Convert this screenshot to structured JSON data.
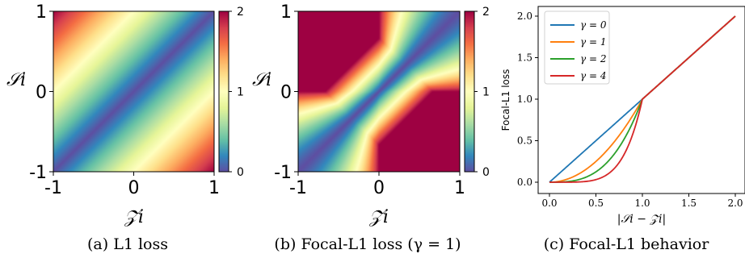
{
  "chart_data": [
    {
      "type": "heatmap",
      "caption": "(a) L1 loss",
      "xlabel": "𝒵i",
      "ylabel": "𝒮i",
      "xlim": [
        -1,
        1
      ],
      "ylim": [
        -1,
        1
      ],
      "xticks": [
        "-1",
        "0",
        "1"
      ],
      "yticks": [
        "-1",
        "0",
        "1"
      ],
      "colorbar": {
        "range": [
          0,
          2
        ],
        "ticks": [
          "0",
          "1",
          "2"
        ]
      },
      "function": "|S - Z|",
      "colormap": "Spectral_r"
    },
    {
      "type": "heatmap",
      "caption": "(b) Focal-L1 loss (γ = 1)",
      "xlabel": "𝒵i",
      "ylabel": "𝒮i",
      "xlim": [
        -1,
        1
      ],
      "ylim": [
        -1,
        1
      ],
      "xticks": [
        "-1",
        "0",
        "1"
      ],
      "yticks": [
        "-1",
        "0",
        "1"
      ],
      "colorbar": {
        "range": [
          0,
          2
        ],
        "ticks": [
          "0",
          "1",
          "2"
        ]
      },
      "function": "focal-L1 of (S - Z), gamma = 1",
      "colormap": "Spectral_r"
    },
    {
      "type": "line",
      "caption": "(c) Focal-L1 behavior",
      "xlabel": "|𝒮i − 𝒵i|",
      "ylabel": "Focal-L1 loss",
      "xlim": [
        0,
        2
      ],
      "ylim": [
        0,
        2
      ],
      "xticks": [
        "0.0",
        "0.5",
        "1.0",
        "1.5",
        "2.0"
      ],
      "yticks": [
        "0.0",
        "0.5",
        "1.0",
        "1.5",
        "2.0"
      ],
      "legend_position": "top-left",
      "x": [
        0.0,
        0.1,
        0.2,
        0.3,
        0.4,
        0.5,
        0.6,
        0.7,
        0.8,
        0.9,
        1.0,
        1.2,
        1.4,
        1.6,
        1.8,
        2.0
      ],
      "series": [
        {
          "name": "γ = 0",
          "color": "#1f77b4",
          "values": [
            0.0,
            0.1,
            0.2,
            0.3,
            0.4,
            0.5,
            0.6,
            0.7,
            0.8,
            0.9,
            1.0,
            1.2,
            1.4,
            1.6,
            1.8,
            2.0
          ]
        },
        {
          "name": "γ = 1",
          "color": "#ff7f0e",
          "values": [
            0.0,
            0.01,
            0.04,
            0.09,
            0.16,
            0.25,
            0.36,
            0.49,
            0.64,
            0.81,
            1.0,
            1.2,
            1.4,
            1.6,
            1.8,
            2.0
          ]
        },
        {
          "name": "γ = 2",
          "color": "#2ca02c",
          "values": [
            0.0,
            0.001,
            0.008,
            0.027,
            0.064,
            0.125,
            0.216,
            0.343,
            0.512,
            0.729,
            1.0,
            1.2,
            1.4,
            1.6,
            1.8,
            2.0
          ]
        },
        {
          "name": "γ = 4",
          "color": "#d62728",
          "values": [
            0.0,
            1e-05,
            0.00032,
            0.0024,
            0.0102,
            0.0313,
            0.0778,
            0.168,
            0.328,
            0.59,
            1.0,
            1.2,
            1.4,
            1.6,
            1.8,
            2.0
          ]
        }
      ]
    }
  ]
}
